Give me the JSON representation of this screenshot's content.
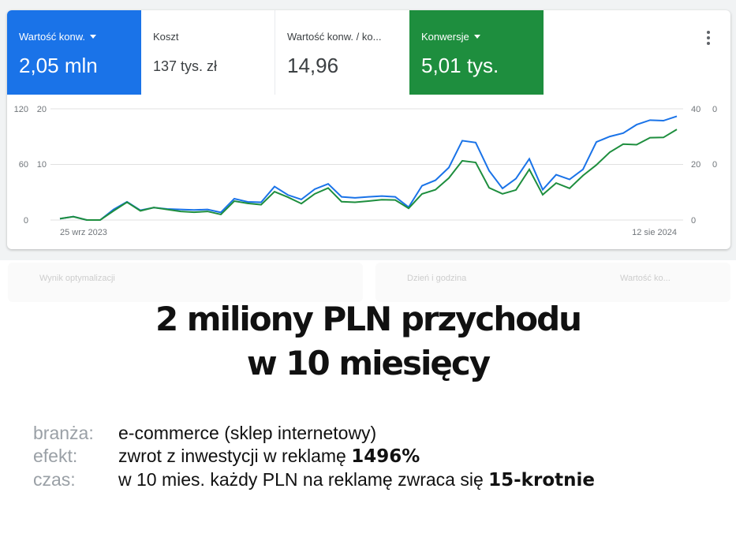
{
  "scorecards": [
    {
      "label": "Wartość konw.",
      "value": "2,05 mln",
      "color": "#1a73e8",
      "selected": true,
      "dropdown": true
    },
    {
      "label": "Koszt",
      "value": "137 tys. zł",
      "selected": false,
      "dropdown": false
    },
    {
      "label": "Wartość konw. / ko...",
      "value": "14,96",
      "selected": false,
      "dropdown": false
    },
    {
      "label": "Konwersje",
      "value": "5,01 tys.",
      "color": "#1e8e3e",
      "selected": true,
      "dropdown": true
    }
  ],
  "chart_data": {
    "type": "line",
    "x_start_label": "25 wrz 2023",
    "x_end_label": "12 sie 2024",
    "left_ticks_outer": [
      "0",
      "60",
      "120"
    ],
    "left_ticks_inner": [
      "",
      "10",
      "20"
    ],
    "right_ticks": [
      "0",
      "20",
      "40"
    ],
    "right_ticks_clipped": [
      "",
      "0",
      "0"
    ],
    "grid": true,
    "series": [
      {
        "axis": "left",
        "ylim": [
          0,
          120
        ],
        "color": "#1a73e8",
        "values": [
          1.4,
          3.7,
          0,
          0,
          11.4,
          19.6,
          10.5,
          13.4,
          11.9,
          11.4,
          10.8,
          11.4,
          8.2,
          23,
          19.6,
          19.1,
          36.1,
          27,
          22.2,
          33.3,
          39,
          25,
          23.9,
          25,
          25.9,
          25,
          13.9,
          37,
          42.9,
          56.6,
          85.6,
          83.6,
          53.2,
          34.1,
          44.6,
          66,
          32.7,
          48.9,
          43.8,
          54.6,
          84.2,
          90.1,
          93.8,
          102.9,
          107.8,
          107.2,
          112
        ]
      },
      {
        "axis": "right",
        "ylim": [
          0,
          40
        ],
        "color": "#1e8e3e",
        "values": [
          0.5,
          1.2,
          0,
          0,
          3.3,
          6.4,
          3.3,
          4.5,
          3.8,
          3.1,
          2.8,
          3.1,
          2,
          6.8,
          6,
          5.5,
          10.2,
          8.2,
          5.9,
          9.4,
          11.5,
          6.6,
          6.4,
          6.8,
          7.3,
          7.2,
          4.2,
          9.4,
          10.9,
          15.1,
          21.3,
          20.7,
          11.6,
          9.4,
          10.8,
          18.2,
          9.1,
          13.3,
          11.4,
          16,
          19.8,
          24.4,
          27.3,
          27.1,
          29.6,
          29.7,
          32.6
        ]
      }
    ]
  },
  "panels": [
    {
      "title": "Wynik optymalizacji"
    },
    {
      "title": "Dzień i godzina",
      "dropdown": "Wartość ko..."
    }
  ],
  "headline": {
    "line1": "2 miliony PLN przychodu",
    "line2": "w 10 miesięcy"
  },
  "facts": [
    {
      "key": "branża:",
      "text": "e-commerce (sklep internetowy)",
      "bold": ""
    },
    {
      "key": "efekt:",
      "text": "zwrot z inwestycji w reklamę ",
      "bold": "1496%"
    },
    {
      "key": "czas:",
      "text": "w 10 mies. każdy PLN na reklamę zwraca się ",
      "bold": "15-krotnie"
    }
  ]
}
